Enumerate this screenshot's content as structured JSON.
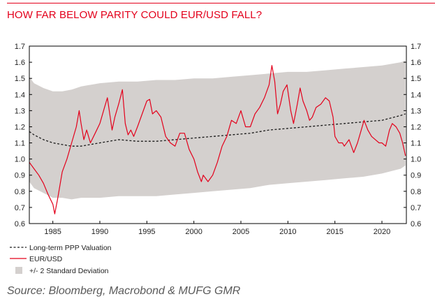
{
  "page": {
    "title": "HOW FAR BELOW PARITY COULD EUR/USD FALL?",
    "source": "Source: Bloomberg, Macrobond & MUFG GMR"
  },
  "chart_data": {
    "type": "line",
    "title": "HOW FAR BELOW PARITY COULD EUR/USD FALL?",
    "xlabel": "",
    "ylabel": "",
    "xlim": [
      1982.5,
      2022.6
    ],
    "ylim": [
      0.6,
      1.7
    ],
    "x_ticks": [
      1985,
      1990,
      1995,
      2000,
      2005,
      2010,
      2015,
      2020
    ],
    "y_ticks": [
      0.6,
      0.7,
      0.8,
      0.9,
      1.0,
      1.1,
      1.2,
      1.3,
      1.4,
      1.5,
      1.6,
      1.7
    ],
    "y_tick_labels": [
      "0.6",
      "0.7",
      "0.8",
      "0.9",
      "1.0",
      "1.1",
      "1.2",
      "1.3",
      "1.4",
      "1.5",
      "1.6",
      "1.7"
    ],
    "dual_y_axis": true,
    "grid": false,
    "legend_position": "bottom-left",
    "colors": {
      "spot": "#e3001b",
      "ppp": "#1a1a1a",
      "band": "#d4d0ce",
      "title": "#e3001b"
    },
    "series": [
      {
        "name": "Long-term PPP Valuation",
        "style": "dashed",
        "x": [
          1982.5,
          1983.0,
          1984.0,
          1985.0,
          1986.0,
          1987.0,
          1988.0,
          1990.0,
          1992.0,
          1994.0,
          1996.0,
          1998.0,
          2000.0,
          2002.0,
          2004.0,
          2006.0,
          2008.0,
          2010.0,
          2012.0,
          2014.0,
          2016.0,
          2018.0,
          2020.0,
          2022.0,
          2022.5
        ],
        "y": [
          1.17,
          1.15,
          1.12,
          1.1,
          1.09,
          1.08,
          1.08,
          1.1,
          1.12,
          1.11,
          1.11,
          1.12,
          1.13,
          1.14,
          1.15,
          1.16,
          1.18,
          1.19,
          1.2,
          1.21,
          1.22,
          1.23,
          1.24,
          1.27,
          1.28
        ]
      },
      {
        "name": "EUR/USD",
        "style": "solid",
        "x": [
          1982.5,
          1983.0,
          1983.5,
          1984.0,
          1984.5,
          1985.0,
          1985.2,
          1985.5,
          1986.0,
          1986.5,
          1987.0,
          1987.5,
          1987.8,
          1988.0,
          1988.3,
          1988.6,
          1989.0,
          1989.5,
          1990.0,
          1990.5,
          1990.8,
          1991.0,
          1991.3,
          1991.6,
          1992.0,
          1992.4,
          1992.7,
          1993.0,
          1993.3,
          1993.6,
          1994.0,
          1994.5,
          1995.0,
          1995.3,
          1995.6,
          1996.0,
          1996.5,
          1997.0,
          1997.5,
          1998.0,
          1998.5,
          1999.0,
          1999.5,
          2000.0,
          2000.4,
          2000.8,
          2001.0,
          2001.5,
          2002.0,
          2002.5,
          2003.0,
          2003.5,
          2004.0,
          2004.5,
          2005.0,
          2005.5,
          2006.0,
          2006.5,
          2007.0,
          2007.5,
          2008.0,
          2008.3,
          2008.6,
          2008.9,
          2009.2,
          2009.5,
          2009.9,
          2010.3,
          2010.6,
          2011.0,
          2011.3,
          2011.6,
          2012.0,
          2012.3,
          2012.6,
          2013.0,
          2013.5,
          2014.0,
          2014.4,
          2014.8,
          2015.0,
          2015.4,
          2015.8,
          2016.0,
          2016.5,
          2017.0,
          2017.4,
          2017.8,
          2018.1,
          2018.5,
          2018.9,
          2019.3,
          2019.7,
          2020.0,
          2020.4,
          2020.8,
          2021.1,
          2021.5,
          2021.9,
          2022.2,
          2022.5
        ],
        "y": [
          0.98,
          0.94,
          0.9,
          0.85,
          0.78,
          0.72,
          0.66,
          0.75,
          0.92,
          1.0,
          1.1,
          1.2,
          1.3,
          1.22,
          1.12,
          1.18,
          1.1,
          1.16,
          1.22,
          1.32,
          1.38,
          1.3,
          1.18,
          1.26,
          1.34,
          1.43,
          1.22,
          1.15,
          1.18,
          1.14,
          1.2,
          1.28,
          1.36,
          1.37,
          1.28,
          1.3,
          1.26,
          1.14,
          1.1,
          1.08,
          1.16,
          1.16,
          1.06,
          1.0,
          0.92,
          0.86,
          0.9,
          0.86,
          0.9,
          0.98,
          1.08,
          1.14,
          1.24,
          1.22,
          1.3,
          1.2,
          1.2,
          1.28,
          1.32,
          1.38,
          1.46,
          1.58,
          1.48,
          1.28,
          1.34,
          1.42,
          1.46,
          1.3,
          1.22,
          1.34,
          1.44,
          1.36,
          1.3,
          1.24,
          1.26,
          1.32,
          1.34,
          1.38,
          1.36,
          1.26,
          1.14,
          1.1,
          1.1,
          1.08,
          1.12,
          1.04,
          1.1,
          1.18,
          1.24,
          1.18,
          1.14,
          1.12,
          1.1,
          1.1,
          1.08,
          1.18,
          1.22,
          1.2,
          1.16,
          1.1,
          1.02
        ]
      },
      {
        "name": "+/- 2 Standard Deviation",
        "style": "band",
        "x": [
          1982.5,
          1983.0,
          1984.0,
          1985.0,
          1986.0,
          1987.0,
          1988.0,
          1990.0,
          1992.0,
          1994.0,
          1996.0,
          1998.0,
          2000.0,
          2002.0,
          2004.0,
          2006.0,
          2008.0,
          2010.0,
          2012.0,
          2014.0,
          2016.0,
          2018.0,
          2020.0,
          2022.0,
          2022.5
        ],
        "upper": [
          1.51,
          1.47,
          1.44,
          1.42,
          1.42,
          1.43,
          1.45,
          1.47,
          1.48,
          1.48,
          1.49,
          1.49,
          1.5,
          1.5,
          1.51,
          1.52,
          1.53,
          1.54,
          1.54,
          1.55,
          1.56,
          1.57,
          1.58,
          1.6,
          1.61
        ],
        "lower": [
          0.86,
          0.82,
          0.79,
          0.76,
          0.76,
          0.75,
          0.76,
          0.76,
          0.77,
          0.77,
          0.77,
          0.78,
          0.79,
          0.8,
          0.81,
          0.82,
          0.84,
          0.85,
          0.86,
          0.87,
          0.88,
          0.89,
          0.91,
          0.94,
          0.96
        ]
      }
    ]
  }
}
